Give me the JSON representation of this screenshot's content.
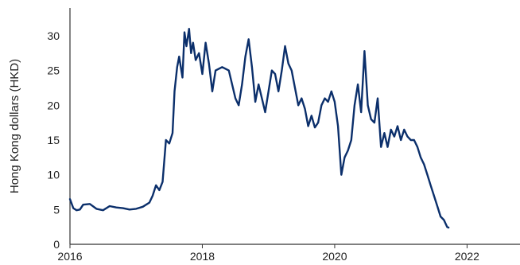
{
  "chart_data": {
    "type": "line",
    "ylabel": "Hong Kong dollars (HKD)",
    "xlim": [
      2016,
      2022.8
    ],
    "ylim": [
      0,
      34
    ],
    "x_ticks": [
      2016,
      2018,
      2020,
      2022
    ],
    "x_tick_labels": [
      "2016",
      "2018",
      "2020",
      "2022"
    ],
    "y_ticks": [
      0,
      5,
      10,
      15,
      20,
      25,
      30
    ],
    "y_tick_labels": [
      "0",
      "5",
      "10",
      "15",
      "20",
      "25",
      "30"
    ],
    "grid": false,
    "legend": "none",
    "colors": {
      "line": "#0b2f6b",
      "axis": "#333333",
      "text": "#1f1f1f"
    },
    "series": [
      {
        "x": [
          2016.0,
          2016.05,
          2016.1,
          2016.15,
          2016.2,
          2016.3,
          2016.4,
          2016.5,
          2016.6,
          2016.7,
          2016.8,
          2016.9,
          2017.0,
          2017.1,
          2017.2,
          2017.25,
          2017.3,
          2017.35,
          2017.4,
          2017.45,
          2017.5,
          2017.55,
          2017.58,
          2017.62,
          2017.65,
          2017.7,
          2017.73,
          2017.76,
          2017.8,
          2017.83,
          2017.86,
          2017.9,
          2017.95,
          2018.0,
          2018.05,
          2018.1,
          2018.15,
          2018.2,
          2018.3,
          2018.4,
          2018.5,
          2018.55,
          2018.6,
          2018.65,
          2018.7,
          2018.75,
          2018.8,
          2018.85,
          2018.9,
          2018.95,
          2019.0,
          2019.05,
          2019.1,
          2019.15,
          2019.2,
          2019.25,
          2019.3,
          2019.35,
          2019.4,
          2019.45,
          2019.5,
          2019.55,
          2019.6,
          2019.65,
          2019.7,
          2019.75,
          2019.8,
          2019.85,
          2019.9,
          2019.95,
          2020.0,
          2020.05,
          2020.1,
          2020.15,
          2020.2,
          2020.25,
          2020.3,
          2020.35,
          2020.4,
          2020.45,
          2020.5,
          2020.55,
          2020.6,
          2020.65,
          2020.7,
          2020.75,
          2020.8,
          2020.85,
          2020.9,
          2020.95,
          2021.0,
          2021.05,
          2021.1,
          2021.15,
          2021.2,
          2021.25,
          2021.3,
          2021.35,
          2021.4,
          2021.45,
          2021.5,
          2021.55,
          2021.6,
          2021.65,
          2021.7,
          2021.72
        ],
        "values": [
          6.5,
          5.2,
          4.9,
          5.0,
          5.7,
          5.8,
          5.1,
          4.9,
          5.5,
          5.3,
          5.2,
          5.0,
          5.1,
          5.4,
          6.0,
          7.0,
          8.5,
          7.8,
          9.0,
          15.0,
          14.5,
          16.0,
          22.0,
          25.5,
          27.0,
          24.0,
          30.5,
          28.5,
          31.0,
          27.5,
          29.0,
          26.5,
          27.5,
          24.5,
          29.0,
          26.0,
          22.0,
          25.0,
          25.5,
          25.0,
          21.0,
          20.0,
          23.0,
          27.0,
          29.5,
          25.5,
          20.5,
          23.0,
          21.0,
          19.0,
          22.0,
          25.0,
          24.5,
          22.0,
          25.0,
          28.5,
          26.0,
          25.0,
          22.5,
          20.0,
          21.0,
          19.5,
          17.0,
          18.5,
          16.8,
          17.5,
          20.0,
          21.0,
          20.5,
          22.0,
          20.5,
          17.0,
          10.0,
          12.5,
          13.5,
          15.0,
          20.0,
          23.0,
          19.0,
          27.8,
          20.0,
          18.0,
          17.5,
          21.0,
          14.0,
          16.0,
          14.0,
          16.5,
          15.5,
          17.0,
          15.0,
          16.5,
          15.5,
          15.0,
          15.0,
          14.0,
          12.5,
          11.5,
          10.0,
          8.5,
          7.0,
          5.5,
          4.0,
          3.5,
          2.5,
          2.4
        ]
      }
    ]
  }
}
